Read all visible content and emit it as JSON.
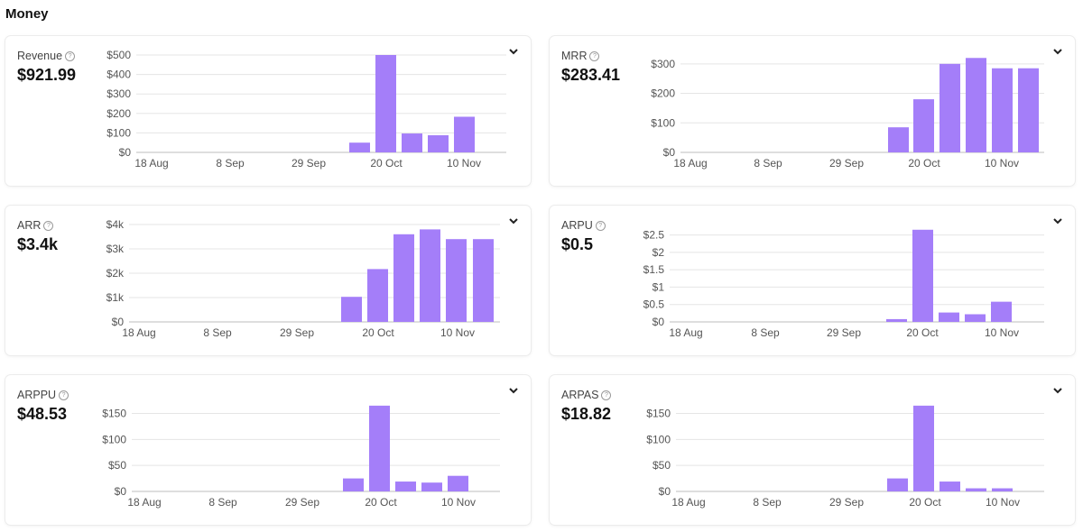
{
  "section_title": "Money",
  "colors": {
    "bar": "#a47ef9",
    "grid": "#e5e5e5",
    "axis": "#bdbdbd"
  },
  "icons": {
    "help": "help-circle-icon",
    "chevron": "chevron-down-icon"
  },
  "x_ticks": [
    "18 Aug",
    "8 Sep",
    "29 Sep",
    "20 Oct",
    "10 Nov"
  ],
  "cards": [
    {
      "id": "revenue",
      "label": "Revenue",
      "value": "$921.99"
    },
    {
      "id": "mrr",
      "label": "MRR",
      "value": "$283.41"
    },
    {
      "id": "arr",
      "label": "ARR",
      "value": "$3.4k"
    },
    {
      "id": "arpu",
      "label": "ARPU",
      "value": "$0.5"
    },
    {
      "id": "arppu",
      "label": "ARPPU",
      "value": "$48.53"
    },
    {
      "id": "arpas",
      "label": "ARPAS",
      "value": "$18.82"
    }
  ],
  "chart_data": [
    {
      "type": "bar",
      "title": "Revenue",
      "x": [
        "13 Oct",
        "20 Oct",
        "27 Oct",
        "3 Nov",
        "10 Nov"
      ],
      "values": [
        50,
        500,
        97,
        88,
        183
      ],
      "ylim": [
        0,
        500
      ],
      "yticks": [
        0,
        100,
        200,
        300,
        400,
        500
      ],
      "ytick_labels": [
        "$0",
        "$100",
        "$200",
        "$300",
        "$400",
        "$500"
      ],
      "xtick_labels": [
        "18 Aug",
        "8 Sep",
        "29 Sep",
        "20 Oct",
        "10 Nov"
      ],
      "grid": true
    },
    {
      "type": "bar",
      "title": "MRR",
      "x": [
        "13 Oct",
        "20 Oct",
        "27 Oct",
        "3 Nov",
        "10 Nov",
        "17 Nov"
      ],
      "values": [
        85,
        180,
        300,
        320,
        285,
        285
      ],
      "ylim": [
        0,
        330
      ],
      "yticks": [
        0,
        100,
        200,
        300
      ],
      "ytick_labels": [
        "$0",
        "$100",
        "$200",
        "$300"
      ],
      "xtick_labels": [
        "18 Aug",
        "8 Sep",
        "29 Sep",
        "20 Oct",
        "10 Nov"
      ],
      "grid": true
    },
    {
      "type": "bar",
      "title": "ARR",
      "x": [
        "13 Oct",
        "20 Oct",
        "27 Oct",
        "3 Nov",
        "10 Nov",
        "17 Nov"
      ],
      "values": [
        1030,
        2170,
        3600,
        3800,
        3400,
        3400
      ],
      "ylim": [
        0,
        4000
      ],
      "yticks": [
        0,
        1000,
        2000,
        3000,
        4000
      ],
      "ytick_labels": [
        "$0",
        "$1k",
        "$2k",
        "$3k",
        "$4k"
      ],
      "xtick_labels": [
        "18 Aug",
        "8 Sep",
        "29 Sep",
        "20 Oct",
        "10 Nov"
      ],
      "grid": true
    },
    {
      "type": "bar",
      "title": "ARPU",
      "x": [
        "13 Oct",
        "20 Oct",
        "27 Oct",
        "3 Nov",
        "10 Nov"
      ],
      "values": [
        0.08,
        2.65,
        0.27,
        0.22,
        0.58
      ],
      "ylim": [
        0,
        2.8
      ],
      "yticks": [
        0,
        0.5,
        1,
        1.5,
        2,
        2.5
      ],
      "ytick_labels": [
        "$0",
        "$0.5",
        "$1",
        "$1.5",
        "$2",
        "$2.5"
      ],
      "xtick_labels": [
        "18 Aug",
        "8 Sep",
        "29 Sep",
        "20 Oct",
        "10 Nov"
      ],
      "grid": true
    },
    {
      "type": "bar",
      "title": "ARPPU",
      "x": [
        "13 Oct",
        "20 Oct",
        "27 Oct",
        "3 Nov",
        "10 Nov"
      ],
      "values": [
        25,
        165,
        19,
        17,
        30
      ],
      "ylim": [
        0,
        170
      ],
      "yticks": [
        0,
        50,
        100,
        150
      ],
      "ytick_labels": [
        "$0",
        "$50",
        "$100",
        "$150"
      ],
      "xtick_labels": [
        "18 Aug",
        "8 Sep",
        "29 Sep",
        "20 Oct",
        "10 Nov"
      ],
      "grid": true
    },
    {
      "type": "bar",
      "title": "ARPAS",
      "x": [
        "13 Oct",
        "20 Oct",
        "27 Oct",
        "3 Nov",
        "10 Nov"
      ],
      "values": [
        25,
        165,
        19,
        6,
        6
      ],
      "ylim": [
        0,
        170
      ],
      "yticks": [
        0,
        50,
        100,
        150
      ],
      "ytick_labels": [
        "$0",
        "$50",
        "$100",
        "$150"
      ],
      "xtick_labels": [
        "18 Aug",
        "8 Sep",
        "29 Sep",
        "20 Oct",
        "10 Nov"
      ],
      "grid": true
    }
  ]
}
